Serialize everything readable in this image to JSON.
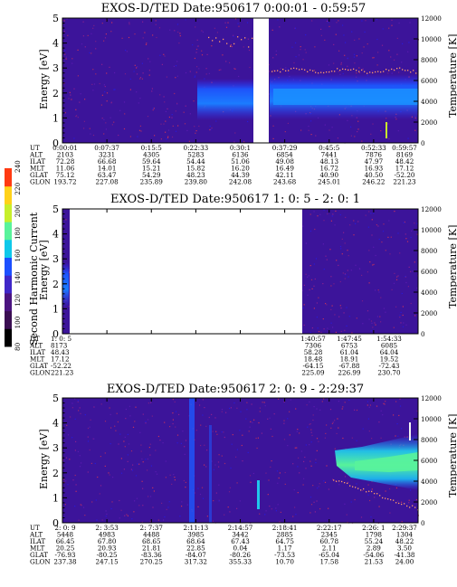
{
  "figure": {
    "colorbar": {
      "label": "Second Harmonic Current",
      "ticks": [
        "80",
        "100",
        "120",
        "140",
        "160",
        "180",
        "200",
        "220",
        "240"
      ],
      "colors": [
        "#000000",
        "#3a0e52",
        "#4b1480",
        "#3f27c8",
        "#1c50ff",
        "#0fc8ea",
        "#59f39b",
        "#c7ef2c",
        "#ffd21a",
        "#ff3a12"
      ]
    },
    "panel_labels": {
      "ylabel_left": "Energy [eV]",
      "ylabel_right": "Temperature [K]",
      "ephem_rows": [
        "UT",
        "ALT",
        "ILAT",
        "MLT",
        "GLAT",
        "GLON"
      ]
    }
  },
  "chart_data": [
    {
      "type": "heatmap",
      "title": "EXOS-D/TED   Date:950617  0:00:01 - 0:59:57",
      "ylabel": "Energy [eV]",
      "y2label": "Temperature [K]",
      "ylim": [
        0,
        5
      ],
      "y2lim": [
        0,
        12000
      ],
      "yticks": [
        "0",
        "1",
        "2",
        "3",
        "4",
        "5"
      ],
      "y2ticks": [
        "0",
        "2000",
        "4000",
        "6000",
        "8000",
        "10000",
        "12000"
      ],
      "data_gaps": [
        [
          0.5,
          0.54
        ]
      ],
      "enhanced_band": {
        "x_from": 0.24,
        "x_to": 1.0,
        "energy_low": 1.3,
        "energy_high": 2.5
      },
      "ephemeris": {
        "ut": [
          "0:00:01",
          "0:07:37",
          "0:15:5",
          "0:22:33",
          "0:30:1",
          "0:37:29",
          "0:45:5",
          "0:52:33",
          "0:59:57"
        ],
        "alt": [
          "2103",
          "3231",
          "4305",
          "5283",
          "6136",
          "6854",
          "7441",
          "7876",
          "8169"
        ],
        "ilat": [
          "72.28",
          "66.68",
          "59.64",
          "54.44",
          "51.06",
          "49.08",
          "48.13",
          "47.97",
          "48.42"
        ],
        "mlt": [
          "11.06",
          "14.01",
          "15.21",
          "15.82",
          "16.20",
          "16.49",
          "16.72",
          "16.93",
          "17.12"
        ],
        "glat": [
          "75.12",
          "63.47",
          "54.29",
          "48.23",
          "44.39",
          "42.11",
          "40.90",
          "40.50",
          "-52.20"
        ],
        "glon": [
          "193.72",
          "227.08",
          "235.89",
          "239.80",
          "242.08",
          "243.68",
          "245.01",
          "246.22",
          "221.23"
        ]
      }
    },
    {
      "type": "heatmap",
      "title": "EXOS-D/TED   Date:950617  1: 0: 5 - 2: 0: 1",
      "ylabel": "Energy [eV]",
      "y2label": "Temperature [K]",
      "ylim": [
        0,
        5
      ],
      "y2lim": [
        0,
        12000
      ],
      "yticks": [
        "0",
        "1",
        "2",
        "3",
        "4",
        "5"
      ],
      "y2ticks": [
        "0",
        "2000",
        "4000",
        "6000",
        "8000",
        "10000",
        "12000"
      ],
      "data_gaps": [
        [
          0.02,
          0.675
        ]
      ],
      "ephemeris_first": {
        "ut": "1: 0: 5",
        "alt": "8173",
        "ilat": "48.43",
        "mlt": "17.12",
        "glat": "-52.22",
        "glon": "221.23"
      },
      "ephemeris": {
        "ut": [
          "1:40:57",
          "1:47:45",
          "1:54:33"
        ],
        "alt": [
          "7306",
          "6753",
          "6085"
        ],
        "ilat": [
          "58.28",
          "61.04",
          "64.04"
        ],
        "mlt": [
          "18.48",
          "18.91",
          "19.52"
        ],
        "glat": [
          "-64.15",
          "-67.88",
          "-72.43"
        ],
        "glon": [
          "225.09",
          "226.99",
          "230.70"
        ]
      }
    },
    {
      "type": "heatmap",
      "title": "EXOS-D/TED   Date:950617  2: 0: 9 - 2:29:37",
      "ylabel": "Energy [eV]",
      "y2label": "Temperature [K]",
      "ylim": [
        0,
        5
      ],
      "y2lim": [
        0,
        12000
      ],
      "yticks": [
        "0",
        "1",
        "2",
        "3",
        "4",
        "5"
      ],
      "y2ticks": [
        "0",
        "2000",
        "4000",
        "6000",
        "8000",
        "10000",
        "12000"
      ],
      "enhanced_band": {
        "x_from": 0.78,
        "x_to": 1.0,
        "energy_low": 2.0,
        "energy_high": 3.0
      },
      "ephemeris": {
        "ut": [
          "2: 0: 9",
          "2: 3:53",
          "2: 7:37",
          "2:11:13",
          "2:14:57",
          "2:18:41",
          "2:22:17",
          "2:26: 1",
          "2:29:37"
        ],
        "alt": [
          "5448",
          "4983",
          "4488",
          "3985",
          "3442",
          "2885",
          "2345",
          "1798",
          "1304"
        ],
        "ilat": [
          "66.45",
          "67.80",
          "68.65",
          "68.64",
          "67.43",
          "64.75",
          "60.78",
          "55.24",
          "48.22"
        ],
        "mlt": [
          "20.25",
          "20.93",
          "21.81",
          "22.85",
          "0.04",
          "1.17",
          "2.11",
          "2.89",
          "3.50"
        ],
        "glat": [
          "-76.93",
          "-80.25",
          "-83.36",
          "-84.07",
          "-80.26",
          "-73.53",
          "-65.04",
          "-54.06",
          "-41.38"
        ],
        "glon": [
          "237.38",
          "247.15",
          "270.25",
          "317.32",
          "355.33",
          "10.70",
          "17.58",
          "21.53",
          "24.00"
        ]
      }
    }
  ]
}
